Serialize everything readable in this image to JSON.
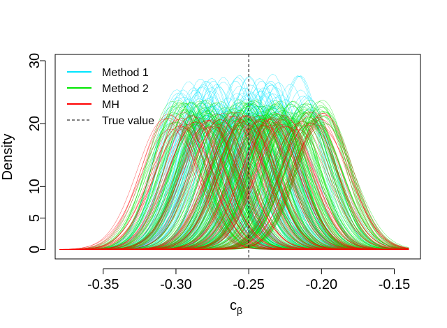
{
  "chart_data": {
    "type": "line",
    "title": "",
    "xlabel": "c",
    "xlabel_subscript": "β",
    "ylabel": "Density",
    "xlim": [
      -0.383,
      -0.132
    ],
    "ylim": [
      -1.5,
      31
    ],
    "x_ticks": [
      -0.35,
      -0.3,
      -0.25,
      -0.2,
      -0.15
    ],
    "x_tick_labels": [
      "-0.35",
      "-0.30",
      "-0.25",
      "-0.20",
      "-0.15"
    ],
    "y_ticks": [
      0,
      5,
      10,
      20,
      30
    ],
    "y_tick_labels": [
      "0",
      "5",
      "10",
      "20",
      "30"
    ],
    "reference_line": {
      "name": "True value",
      "x": -0.25,
      "style": "dashed",
      "color": "#000000"
    },
    "curve_x_range": [
      -0.38,
      -0.14
    ],
    "series": [
      {
        "name": "Method 1",
        "color": "#00e5ff",
        "curve_count": 150,
        "means": [
          -0.298,
          -0.293,
          -0.289,
          -0.285,
          -0.281,
          -0.277,
          -0.274,
          -0.27,
          -0.267,
          -0.263,
          -0.259,
          -0.255,
          -0.251,
          -0.247,
          -0.242,
          -0.238,
          -0.233,
          -0.228,
          -0.222,
          -0.216,
          -0.21
        ],
        "peak_densities": [
          27.5,
          27.0,
          26.5,
          26.0,
          25.5,
          25.0,
          24.5,
          24.0,
          23.5,
          23.0,
          22.5,
          22.0,
          21.5,
          21.0,
          20.5,
          20.0
        ]
      },
      {
        "name": "Method 2",
        "color": "#00e600",
        "curve_count": 220,
        "means": [
          -0.3,
          -0.292,
          -0.285,
          -0.278,
          -0.271,
          -0.265,
          -0.259,
          -0.254,
          -0.249,
          -0.245,
          -0.24,
          -0.235,
          -0.23,
          -0.225,
          -0.219,
          -0.213,
          -0.207,
          -0.2
        ],
        "peak_densities": [
          23.5,
          23.0,
          22.5,
          22.0,
          21.5,
          21.0,
          20.5,
          20.0
        ]
      },
      {
        "name": "MH",
        "color": "#ff0000",
        "curve_count": 90,
        "means": [
          -0.305,
          -0.296,
          -0.287,
          -0.278,
          -0.269,
          -0.26,
          -0.251,
          -0.242,
          -0.233,
          -0.224,
          -0.216,
          -0.208,
          -0.2
        ],
        "peak_densities": [
          21.5,
          21.0,
          20.5,
          20.0,
          19.5
        ]
      }
    ],
    "legend": {
      "position": "top-left",
      "entries": [
        {
          "label": "Method 1",
          "color": "#00e5ff",
          "style": "solid"
        },
        {
          "label": "Method 2",
          "color": "#00e600",
          "style": "solid"
        },
        {
          "label": "MH",
          "color": "#ff0000",
          "style": "solid"
        },
        {
          "label": "True value",
          "color": "#000000",
          "style": "dashed"
        }
      ]
    }
  }
}
